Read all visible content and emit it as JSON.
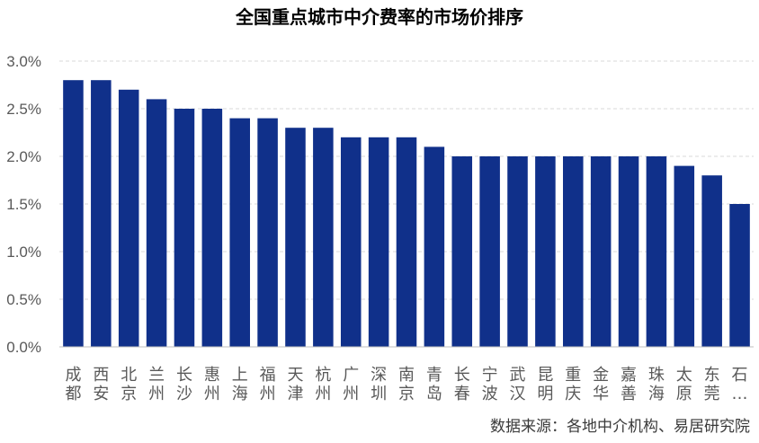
{
  "chart_data": {
    "type": "bar",
    "title": "全国重点城市中介费率的市场价排序",
    "categories": [
      "成都",
      "西安",
      "北京",
      "兰州",
      "长沙",
      "惠州",
      "上海",
      "福州",
      "天津",
      "杭州",
      "广州",
      "深圳",
      "南京",
      "青岛",
      "长春",
      "宁波",
      "武汉",
      "昆明",
      "重庆",
      "金华",
      "嘉善",
      "珠海",
      "太原",
      "东莞",
      "石…"
    ],
    "values": [
      2.8,
      2.8,
      2.7,
      2.6,
      2.5,
      2.5,
      2.4,
      2.4,
      2.3,
      2.3,
      2.2,
      2.2,
      2.2,
      2.1,
      2.0,
      2.0,
      2.0,
      2.0,
      2.0,
      2.0,
      2.0,
      2.0,
      1.9,
      1.8,
      1.5
    ],
    "y_ticks": [
      "0.0%",
      "0.5%",
      "1.0%",
      "1.5%",
      "2.0%",
      "2.5%",
      "3.0%"
    ],
    "ylim": [
      0,
      3.0
    ],
    "grid": true,
    "bar_color": "#10308a",
    "source": "数据来源：各地中介机构、易居研究院"
  }
}
